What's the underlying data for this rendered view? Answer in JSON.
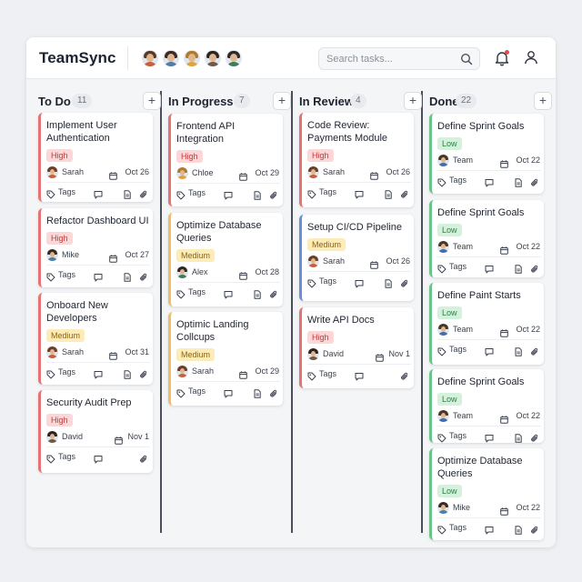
{
  "app": {
    "brand": "TeamSync",
    "search_placeholder": "Search tasks...",
    "team_avatars": [
      {
        "hair": "#5a3a26",
        "body": "#c7613d"
      },
      {
        "hair": "#3b2a20",
        "body": "#4d7fa8"
      },
      {
        "hair": "#b07a2e",
        "body": "#e0a23a"
      },
      {
        "hair": "#2e241e",
        "body": "#6f5a48"
      },
      {
        "hair": "#2a2a2a",
        "body": "#3f7d5a"
      }
    ]
  },
  "accent_colors": {
    "high": "#e57373",
    "medium": "#f0c060",
    "blue": "#6a8fd6",
    "low": "#6cc38a"
  },
  "columns": [
    {
      "title": "To Do",
      "count": "11",
      "cards": [
        {
          "title": "Implement User Authentication",
          "priority": "High",
          "assignee": "Sarah",
          "date": "Oct 26",
          "accent": "high"
        },
        {
          "title": "Refactor Dashboard UI",
          "priority": "High",
          "assignee": "Mike",
          "date": "Oct 27",
          "accent": "high"
        },
        {
          "title": "Onboard New Developers",
          "priority": "Medium",
          "assignee": "Sarah",
          "date": "Oct 31",
          "accent": "high"
        },
        {
          "title": "Security Audit Prep",
          "priority": "High",
          "assignee": "David",
          "date": "Nov 1",
          "accent": "high"
        }
      ]
    },
    {
      "title": "In Progress",
      "count": "7",
      "cards": [
        {
          "title": "Frontend API Integration",
          "priority": "High",
          "assignee": "Chloe",
          "date": "Oct 29",
          "accent": "high"
        },
        {
          "title": "Optimize Database Queries",
          "priority": "Medium",
          "assignee": "Alex",
          "date": "Oct 28",
          "accent": "medium"
        },
        {
          "title": "Optimic Landing Collcups",
          "priority": "Medium",
          "assignee": "Sarah",
          "date": "Oct 29",
          "accent": "medium"
        }
      ]
    },
    {
      "title": "In Review",
      "count": "4",
      "cards": [
        {
          "title": "Code Review: Payments Module",
          "priority": "High",
          "assignee": "Sarah",
          "date": "Oct 26",
          "accent": "high"
        },
        {
          "title": "Setup CI/CD Pipeline",
          "priority": "Medium",
          "assignee": "Sarah",
          "date": "Oct 26",
          "accent": "blue"
        },
        {
          "title": "Write API Docs",
          "priority": "High",
          "assignee": "David",
          "date": "Nov 1",
          "accent": "high"
        }
      ]
    },
    {
      "title": "Done",
      "count": "22",
      "cards": [
        {
          "title": "Define Sprint Goals",
          "priority": "Low",
          "assignee": "Team",
          "date": "Oct 22",
          "accent": "low"
        },
        {
          "title": "Define Sprint Goals",
          "priority": "Low",
          "assignee": "Team",
          "date": "Oct 22",
          "accent": "low"
        },
        {
          "title": "Define Paint Starts",
          "priority": "Low",
          "assignee": "Team",
          "date": "Oct 22",
          "accent": "low"
        },
        {
          "title": "Define Sprint Goals",
          "priority": "Low",
          "assignee": "Team",
          "date": "Oct 22",
          "accent": "low"
        },
        {
          "title": "Optimize Database Queries",
          "priority": "Low",
          "assignee": "Mike",
          "date": "Oct 22",
          "accent": "low"
        }
      ]
    }
  ],
  "labels": {
    "tags": "Tags",
    "add": "+"
  }
}
